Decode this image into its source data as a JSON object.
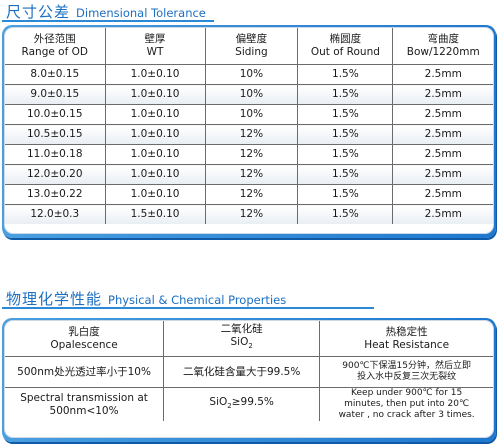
{
  "section1": {
    "title_cn": "尺寸公差",
    "title_en": "Dimensional Tolerance",
    "headers": [
      {
        "cn": "外径范围",
        "en": "Range of OD"
      },
      {
        "cn": "壁厚",
        "en": "WT"
      },
      {
        "cn": "偏壁度",
        "en": "Siding"
      },
      {
        "cn": "椭圆度",
        "en": "Out of Round"
      },
      {
        "cn": "弯曲度",
        "en": "Bow/1220mm"
      }
    ],
    "rows": [
      [
        "8.0±0.15",
        "1.0±0.10",
        "10%",
        "1.5%",
        "2.5mm"
      ],
      [
        "9.0±0.15",
        "1.0±0.10",
        "10%",
        "1.5%",
        "2.5mm"
      ],
      [
        "10.0±0.15",
        "1.0±0.10",
        "10%",
        "1.5%",
        "2.5mm"
      ],
      [
        "10.5±0.15",
        "1.0±0.10",
        "12%",
        "1.5%",
        "2.5mm"
      ],
      [
        "11.0±0.18",
        "1.0±0.10",
        "12%",
        "1.5%",
        "2.5mm"
      ],
      [
        "12.0±0.20",
        "1.0±0.10",
        "12%",
        "1.5%",
        "2.5mm"
      ],
      [
        "13.0±0.22",
        "1.0±0.10",
        "12%",
        "1.5%",
        "2.5mm"
      ],
      [
        "12.0±0.3",
        "1.5±0.10",
        "12%",
        "1.5%",
        "2.5mm"
      ]
    ]
  },
  "section2": {
    "title_cn": "物理化学性能",
    "title_en": "Physical & Chemical Properties",
    "headers": [
      {
        "cn": "乳白度",
        "en": "Opalescence"
      },
      {
        "cn": "二氧化硅",
        "en_main": "SiO",
        "en_sub": "2"
      },
      {
        "cn": "热稳定性",
        "en": "Heat Resistance"
      }
    ],
    "row_cn": {
      "c1": "500nm处光透过率小于10%",
      "c2": "二氧化硅含量大于99.5%",
      "c3_l1": "900℃下保温15分钟，然后立即",
      "c3_l2": "投入水中反复三次无裂纹"
    },
    "row_en": {
      "c1_l1": "Spectral transmission at",
      "c1_l2": "500nm<10%",
      "c2_main": "SiO",
      "c2_sub": "2",
      "c2_rest": "≥99.5%",
      "c3_l1": "Keep under 900℃ for 15",
      "c3_l2": "minutes, then put  into 20℃",
      "c3_l3": "water , no crack after 3 times."
    }
  }
}
